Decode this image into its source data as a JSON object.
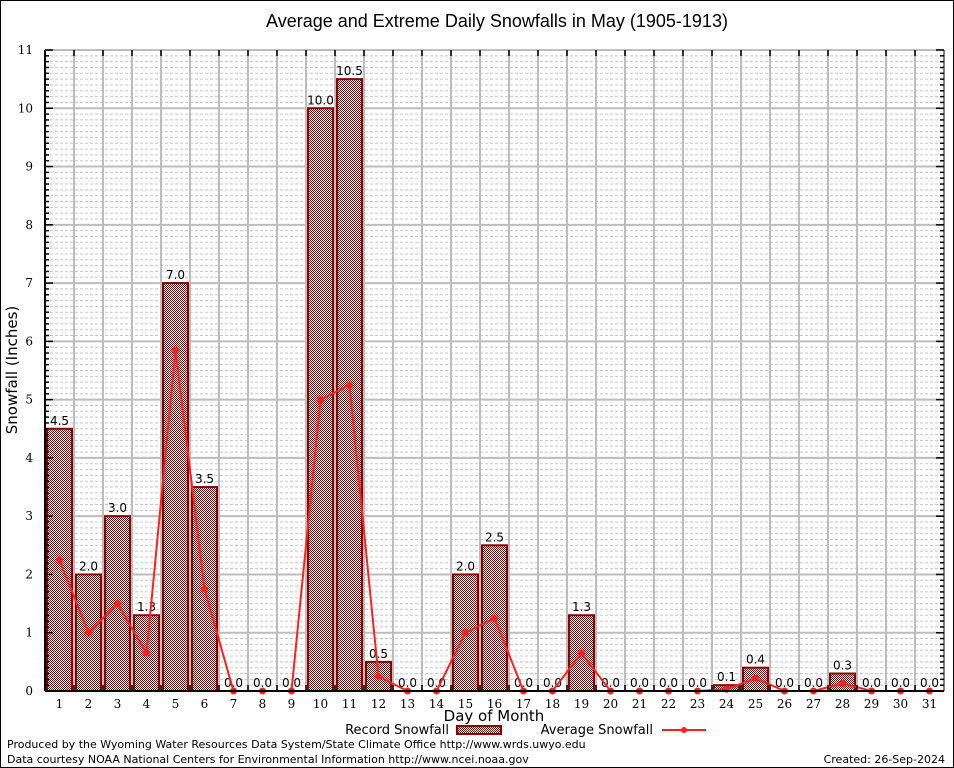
{
  "chart_data": {
    "type": "bar",
    "title": "Average and Extreme Daily Snowfalls in May (1905-1913)",
    "xlabel": "Day of Month",
    "ylabel": "Snowfall (Inches)",
    "ylim": [
      0,
      11
    ],
    "yticks": [
      "0",
      "1",
      "2",
      "3",
      "4",
      "5",
      "6",
      "7",
      "8",
      "9",
      "10",
      "11"
    ],
    "grid": true,
    "legend_position": "bottom",
    "categories": [
      "1",
      "2",
      "3",
      "4",
      "5",
      "6",
      "7",
      "8",
      "9",
      "10",
      "11",
      "12",
      "13",
      "14",
      "15",
      "16",
      "17",
      "18",
      "19",
      "20",
      "21",
      "22",
      "23",
      "24",
      "25",
      "26",
      "27",
      "28",
      "29",
      "30",
      "31"
    ],
    "series": [
      {
        "name": "Record Snowfall",
        "type": "bar",
        "color": "#8b0000",
        "values": [
          4.5,
          2.0,
          3.0,
          1.3,
          7.0,
          3.5,
          0.0,
          0.0,
          0.0,
          10.0,
          10.5,
          0.5,
          0.0,
          0.0,
          2.0,
          2.5,
          0.0,
          0.0,
          1.3,
          0.0,
          0.0,
          0.0,
          0.0,
          0.1,
          0.4,
          0.0,
          0.0,
          0.3,
          0.0,
          0.0,
          0.0
        ],
        "labels": [
          "4.5",
          "2.0",
          "3.0",
          "1.3",
          "7.0",
          "3.5",
          "0.0",
          "0.0",
          "0.0",
          "10.0",
          "10.5",
          "0.5",
          "0.0",
          "0.0",
          "2.0",
          "2.5",
          "0.0",
          "0.0",
          "1.3",
          "0.0",
          "0.0",
          "0.0",
          "0.0",
          "0.1",
          "0.4",
          "0.0",
          "0.0",
          "0.3",
          "0.0",
          "0.0",
          "0.0"
        ]
      },
      {
        "name": "Average Snowfall",
        "type": "line",
        "color": "#ff2020",
        "values": [
          2.25,
          1.0,
          1.5,
          0.65,
          5.85,
          1.75,
          0.0,
          0.0,
          0.0,
          5.0,
          5.25,
          0.25,
          0.0,
          0.0,
          1.0,
          1.25,
          0.0,
          0.0,
          0.65,
          0.0,
          0.0,
          0.0,
          0.0,
          0.03,
          0.22,
          0.0,
          0.0,
          0.13,
          0.0,
          0.0,
          0.0
        ]
      }
    ]
  },
  "footer": {
    "produced_by": "Produced by the Wyoming Water Resources Data System/State Climate Office http://www.wrds.uwyo.edu",
    "data_courtesy": "Data courtesy NOAA National Centers for Environmental Information http://www.ncei.noaa.gov",
    "created": "Created: 26-Sep-2024"
  }
}
